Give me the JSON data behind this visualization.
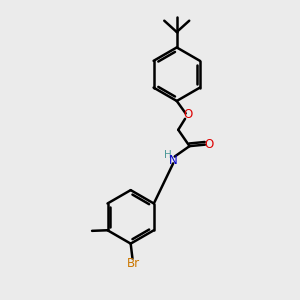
{
  "background_color": "#ebebeb",
  "bond_color": "#000000",
  "bond_width": 1.8,
  "fig_width": 3.0,
  "fig_height": 3.0,
  "dpi": 100,
  "colors": {
    "O": "#dd0000",
    "N": "#0000cc",
    "Br": "#cc7700",
    "H": "#4d9999",
    "C": "#000000"
  },
  "font_size": 8.5
}
